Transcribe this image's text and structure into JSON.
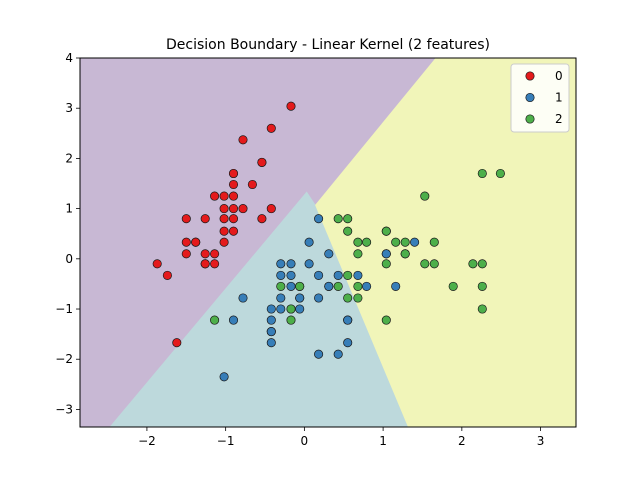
{
  "chart_data": {
    "type": "scatter",
    "title": "Decision Boundary - Linear Kernel (2 features)",
    "xlabel": "",
    "ylabel": "",
    "xlim": [
      -2.85,
      3.45
    ],
    "ylim": [
      -3.35,
      4.0
    ],
    "x_ticks": [
      -2,
      -1,
      0,
      1,
      2,
      3
    ],
    "y_ticks": [
      -3,
      -2,
      -1,
      0,
      1,
      2,
      3,
      4
    ],
    "x_tick_labels": [
      "−2",
      "−1",
      "0",
      "1",
      "2",
      "3"
    ],
    "y_tick_labels": [
      "−3",
      "−2",
      "−1",
      "0",
      "1",
      "2",
      "3",
      "4"
    ],
    "grid": false,
    "legend_position": "top-right",
    "regions": [
      {
        "class": "0",
        "color": "#c8b8d4",
        "polygon": [
          [
            -2.85,
            4.0
          ],
          [
            1.67,
            4.0
          ],
          [
            0.14,
            1.07
          ],
          [
            0.03,
            1.33
          ],
          [
            -2.47,
            -3.35
          ],
          [
            -2.85,
            -3.35
          ]
        ]
      },
      {
        "class": "1",
        "color": "#bdd9dc",
        "polygon": [
          [
            0.03,
            1.33
          ],
          [
            0.14,
            1.07
          ],
          [
            1.32,
            -3.35
          ],
          [
            -2.47,
            -3.35
          ]
        ]
      },
      {
        "class": "2",
        "color": "#f1f5b9",
        "polygon": [
          [
            1.67,
            4.0
          ],
          [
            3.45,
            4.0
          ],
          [
            3.45,
            -3.35
          ],
          [
            1.32,
            -3.35
          ],
          [
            0.14,
            1.07
          ]
        ]
      }
    ],
    "series": [
      {
        "name": "0",
        "color": "#e41a1c",
        "points": [
          [
            -1.87,
            -0.1
          ],
          [
            -1.74,
            -0.33
          ],
          [
            -1.62,
            -1.67
          ],
          [
            -1.5,
            0.8
          ],
          [
            -1.5,
            0.33
          ],
          [
            -1.5,
            0.1
          ],
          [
            -1.38,
            0.33
          ],
          [
            -1.38,
            0.33
          ],
          [
            -1.26,
            0.8
          ],
          [
            -1.26,
            0.1
          ],
          [
            -1.26,
            -0.1
          ],
          [
            -1.26,
            -0.1
          ],
          [
            -1.14,
            1.25
          ],
          [
            -1.14,
            0.1
          ],
          [
            -1.14,
            -0.1
          ],
          [
            -1.02,
            1.25
          ],
          [
            -1.02,
            1.0
          ],
          [
            -1.02,
            0.8
          ],
          [
            -1.02,
            0.55
          ],
          [
            -1.02,
            0.33
          ],
          [
            -0.9,
            1.7
          ],
          [
            -0.9,
            1.7
          ],
          [
            -0.9,
            1.48
          ],
          [
            -0.9,
            1.25
          ],
          [
            -0.9,
            1.0
          ],
          [
            -0.9,
            0.8
          ],
          [
            -0.9,
            0.55
          ],
          [
            -0.78,
            2.37
          ],
          [
            -0.78,
            1.0
          ],
          [
            -0.66,
            1.48
          ],
          [
            -0.54,
            1.92
          ],
          [
            -0.54,
            1.92
          ],
          [
            -0.54,
            0.8
          ],
          [
            -0.42,
            2.6
          ],
          [
            -0.42,
            1.0
          ],
          [
            -0.17,
            3.04
          ]
        ]
      },
      {
        "name": "1",
        "color": "#377eb8",
        "points": [
          [
            -1.02,
            -2.35
          ],
          [
            -0.9,
            -1.22
          ],
          [
            -0.78,
            -0.78
          ],
          [
            -0.42,
            -1.0
          ],
          [
            -0.42,
            -1.22
          ],
          [
            -0.42,
            -1.45
          ],
          [
            -0.42,
            -1.45
          ],
          [
            -0.42,
            -1.67
          ],
          [
            -0.3,
            -0.1
          ],
          [
            -0.3,
            -0.33
          ],
          [
            -0.3,
            -0.78
          ],
          [
            -0.3,
            -1.0
          ],
          [
            -0.17,
            -0.1
          ],
          [
            -0.17,
            -0.33
          ],
          [
            -0.17,
            -0.55
          ],
          [
            -0.17,
            -1.0
          ],
          [
            -0.06,
            -0.55
          ],
          [
            -0.06,
            -0.78
          ],
          [
            -0.06,
            -0.78
          ],
          [
            -0.06,
            -1.0
          ],
          [
            0.06,
            0.33
          ],
          [
            0.06,
            -0.1
          ],
          [
            0.18,
            0.8
          ],
          [
            0.18,
            -0.33
          ],
          [
            0.18,
            -0.78
          ],
          [
            0.18,
            -1.9
          ],
          [
            0.31,
            0.1
          ],
          [
            0.31,
            -0.55
          ],
          [
            0.31,
            -0.55
          ],
          [
            0.43,
            -0.33
          ],
          [
            0.43,
            -1.9
          ],
          [
            0.55,
            -1.22
          ],
          [
            0.55,
            -1.22
          ],
          [
            0.55,
            -1.67
          ],
          [
            0.68,
            -0.33
          ],
          [
            0.79,
            -0.55
          ],
          [
            1.04,
            0.1
          ],
          [
            1.04,
            0.1
          ],
          [
            1.16,
            -0.55
          ],
          [
            1.28,
            0.1
          ],
          [
            1.4,
            0.33
          ]
        ]
      },
      {
        "name": "2",
        "color": "#4daf4a",
        "points": [
          [
            -1.14,
            -1.22
          ],
          [
            -0.3,
            -0.55
          ],
          [
            -0.17,
            -1.22
          ],
          [
            -0.17,
            -1.0
          ],
          [
            -0.06,
            -0.55
          ],
          [
            0.43,
            0.8
          ],
          [
            0.43,
            -0.55
          ],
          [
            0.55,
            0.8
          ],
          [
            0.55,
            0.55
          ],
          [
            0.55,
            -0.33
          ],
          [
            0.55,
            -0.78
          ],
          [
            0.68,
            0.33
          ],
          [
            0.68,
            0.1
          ],
          [
            0.68,
            -0.55
          ],
          [
            0.68,
            -0.78
          ],
          [
            0.79,
            0.33
          ],
          [
            1.04,
            0.55
          ],
          [
            1.04,
            0.55
          ],
          [
            1.04,
            -0.1
          ],
          [
            1.04,
            -1.22
          ],
          [
            1.16,
            0.33
          ],
          [
            1.28,
            0.33
          ],
          [
            1.28,
            0.1
          ],
          [
            1.53,
            -0.1
          ],
          [
            1.53,
            1.25
          ],
          [
            1.65,
            0.33
          ],
          [
            1.65,
            -0.1
          ],
          [
            1.89,
            -0.55
          ],
          [
            2.14,
            -0.1
          ],
          [
            2.26,
            1.7
          ],
          [
            2.26,
            -0.1
          ],
          [
            2.26,
            -0.55
          ],
          [
            2.26,
            -1.0
          ],
          [
            2.49,
            1.7
          ]
        ]
      }
    ]
  }
}
